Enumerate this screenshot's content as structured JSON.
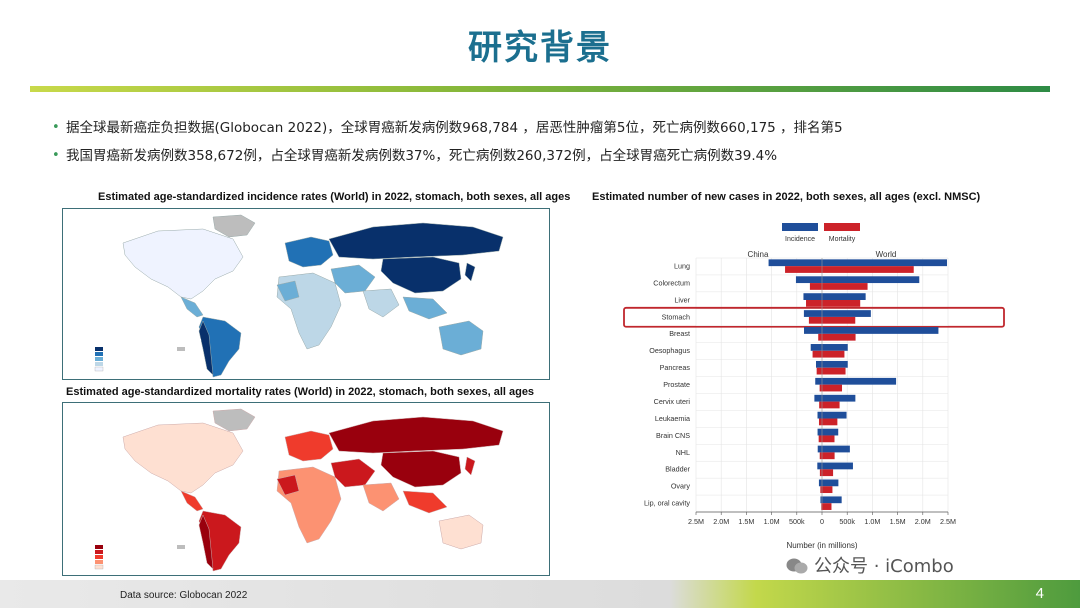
{
  "slide": {
    "title": "研究背景",
    "bullets": [
      "据全球最新癌症负担数据(Globocan 2022)，全球胃癌新发病例数968,784 ，居恶性肿瘤第5位，死亡病例数660,175 ，排名第5",
      "我国胃癌新发病例数358,672例，占全球胃癌新发病例数37%，死亡病例数260,372例，占全球胃癌死亡病例数39.4%"
    ],
    "page_number": "4",
    "source": "Data source: Globocan 2022",
    "watermark": "公众号 · iCombo"
  },
  "maps": {
    "incidence_caption": "Estimated age-standardized incidence rates (World) in 2022, stomach, both sexes, all ages",
    "mortality_caption": "Estimated age-standardized mortality rates (World) in 2022, stomach, both sexes, all ages",
    "incidence_colors": [
      "#08306b",
      "#2171b5",
      "#6baed6",
      "#bdd7e7",
      "#eff3ff"
    ],
    "mortality_colors": [
      "#99000d",
      "#cb181d",
      "#ef3b2c",
      "#fc9272",
      "#fee0d2"
    ],
    "na_color": "#bdbdbd"
  },
  "chart_data": {
    "type": "bar",
    "title": "Estimated number of new cases in 2022, both sexes, all ages (excl. NMSC)",
    "xlabel": "Number (in millions)",
    "left_label": "China",
    "right_label": "World",
    "legend": [
      "Incidence",
      "Mortality"
    ],
    "colors": {
      "incidence": "#1f4e9a",
      "mortality": "#cc2229",
      "highlight": "#c0272d"
    },
    "highlight": "Stomach",
    "ticks": [
      "2.5M",
      "2.0M",
      "1.5M",
      "1.0M",
      "500k",
      "0",
      "500k",
      "1.0M",
      "1.5M",
      "2.0M",
      "2.5M"
    ],
    "xlim": [
      -2500000,
      2500000
    ],
    "categories": [
      "Lung",
      "Colorectum",
      "Liver",
      "Stomach",
      "Breast",
      "Oesophagus",
      "Pancreas",
      "Prostate",
      "Cervix uteri",
      "Leukaemia",
      "Brain CNS",
      "NHL",
      "Bladder",
      "Ovary",
      "Lip, oral cavity"
    ],
    "series": [
      {
        "name": "China Incidence",
        "values": [
          1060000,
          517000,
          368000,
          359000,
          357000,
          224000,
          119000,
          134000,
          151000,
          89000,
          88000,
          85000,
          93000,
          61000,
          31000
        ]
      },
      {
        "name": "China Mortality",
        "values": [
          733000,
          240000,
          317000,
          260000,
          75000,
          187000,
          106000,
          47000,
          56000,
          60000,
          66000,
          45000,
          42000,
          33000,
          15000
        ]
      },
      {
        "name": "World Incidence",
        "values": [
          2480000,
          1930000,
          866000,
          969000,
          2310000,
          511000,
          511000,
          1470000,
          662000,
          487000,
          322000,
          553000,
          614000,
          325000,
          390000
        ]
      },
      {
        "name": "World Mortality",
        "values": [
          1820000,
          904000,
          758000,
          660000,
          666000,
          445000,
          467000,
          397000,
          349000,
          305000,
          248000,
          250000,
          220000,
          207000,
          188000
        ]
      }
    ]
  }
}
